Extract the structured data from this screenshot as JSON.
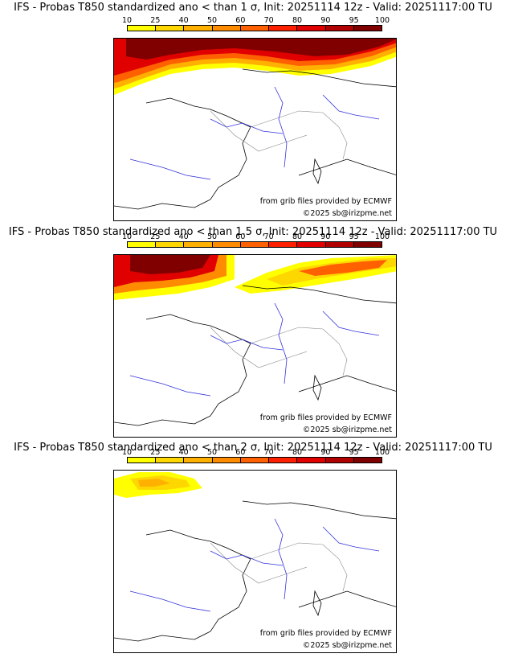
{
  "scale": {
    "labels": [
      "10",
      "25",
      "40",
      "50",
      "60",
      "70",
      "80",
      "90",
      "95",
      "100"
    ],
    "colors": [
      "#ffff00",
      "#ffd700",
      "#ffb000",
      "#ff8c00",
      "#ff6000",
      "#ff2000",
      "#e00000",
      "#b00000",
      "#800000"
    ]
  },
  "panels": [
    {
      "title": "IFS - Probas T850  standardized ano < than 1 σ, Init: 20251114 12z - Valid: 20251117:00 TU",
      "credit_source": "from grib files provided by ECMWF",
      "credit_copy": "©2025 sb@irizpme.net"
    },
    {
      "title": "IFS - Probas T850  standardized ano < than 1.5 σ, Init: 20251114 12z - Valid: 20251117:00 TU",
      "credit_source": "from grib files provided by ECMWF",
      "credit_copy": "©2025 sb@irizpme.net"
    },
    {
      "title": "IFS - Probas T850  standardized ano < than 2 σ, Init: 20251114 12z - Valid: 20251117:00 TU",
      "credit_source": "from grib files provided by ECMWF",
      "credit_copy": "©2025 sb@irizpme.net"
    }
  ]
}
